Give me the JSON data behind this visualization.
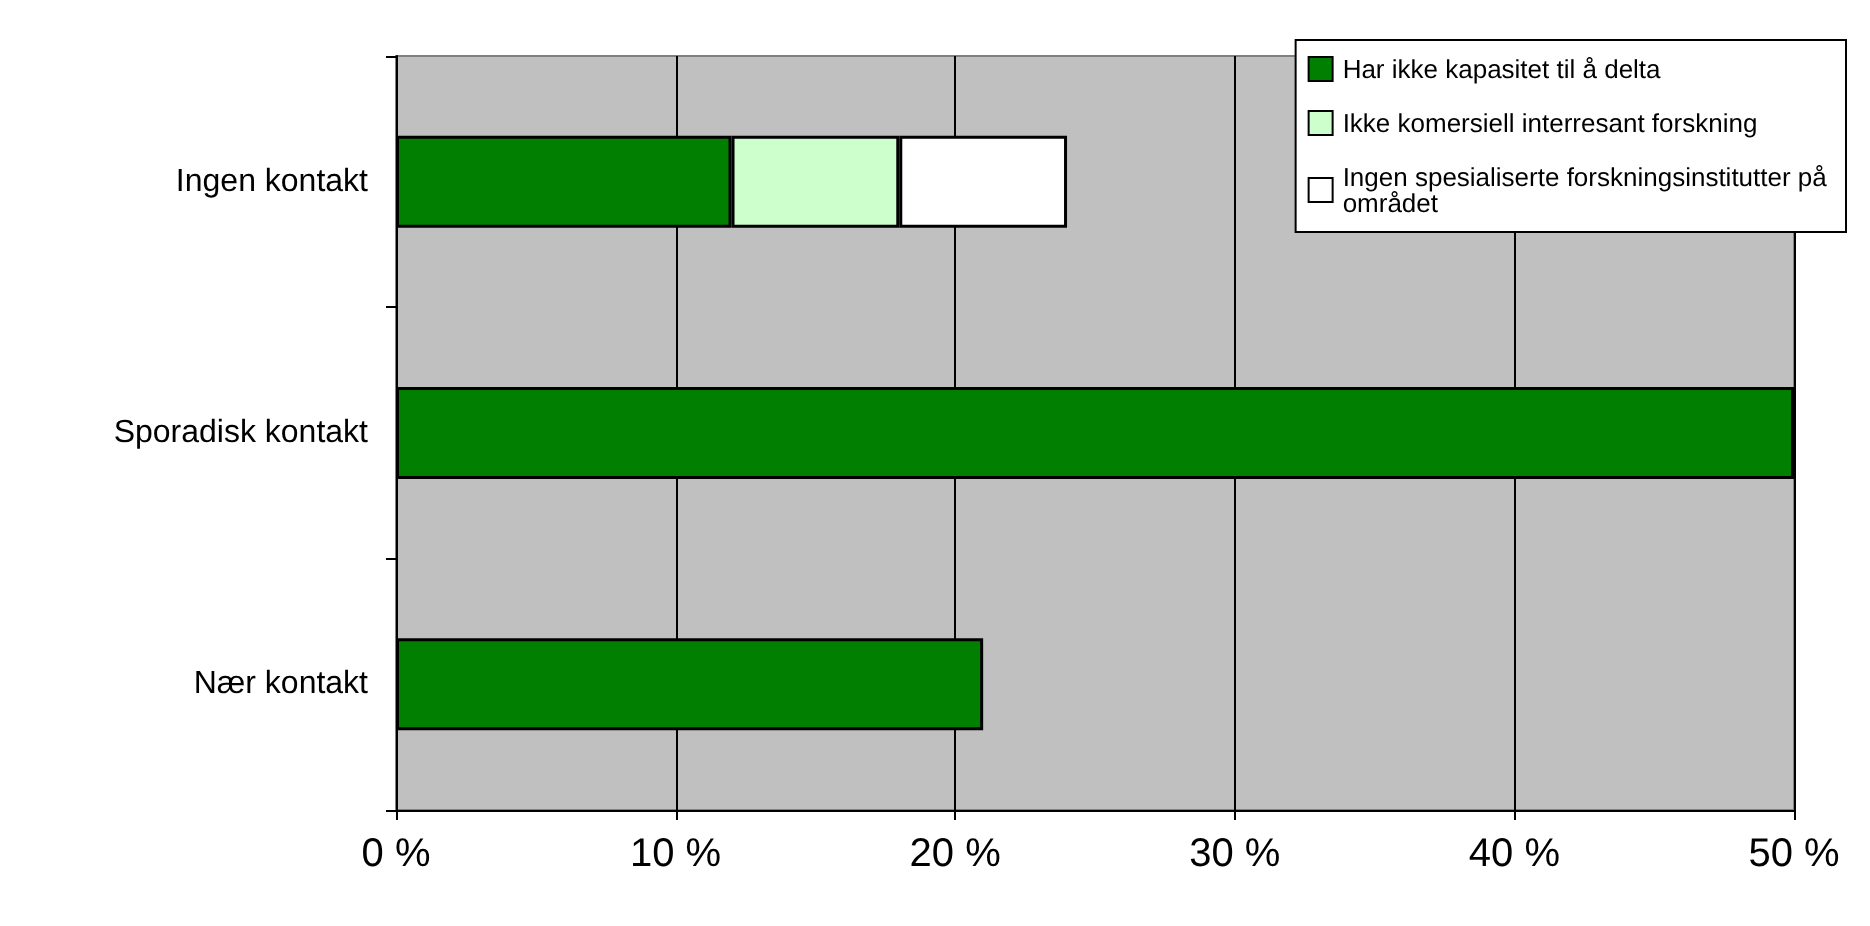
{
  "chart_data": {
    "type": "bar",
    "orientation": "horizontal",
    "stacked": true,
    "categories": [
      "Ingen kontakt",
      "Sporadisk kontakt",
      "Nær kontakt"
    ],
    "series": [
      {
        "name": "Har ikke kapasitet til å delta",
        "color": "#007f00",
        "values": [
          12,
          50,
          21
        ]
      },
      {
        "name": "Ikke komersiell interresant forskning",
        "color": "#ccffcc",
        "values": [
          6,
          null,
          null
        ]
      },
      {
        "name": "Ingen spesialiserte forskningsinstitutter på området",
        "color": "#ffffff",
        "values": [
          6,
          null,
          null
        ]
      }
    ],
    "xlim": [
      0,
      50
    ],
    "xticks": [
      {
        "value": 0,
        "label": "0 %"
      },
      {
        "value": 10,
        "label": "10 %"
      },
      {
        "value": 20,
        "label": "20 %"
      },
      {
        "value": 30,
        "label": "30 %"
      },
      {
        "value": 40,
        "label": "40 %"
      },
      {
        "value": 50,
        "label": "50 %"
      }
    ],
    "grid": "x",
    "legend": "top right"
  }
}
